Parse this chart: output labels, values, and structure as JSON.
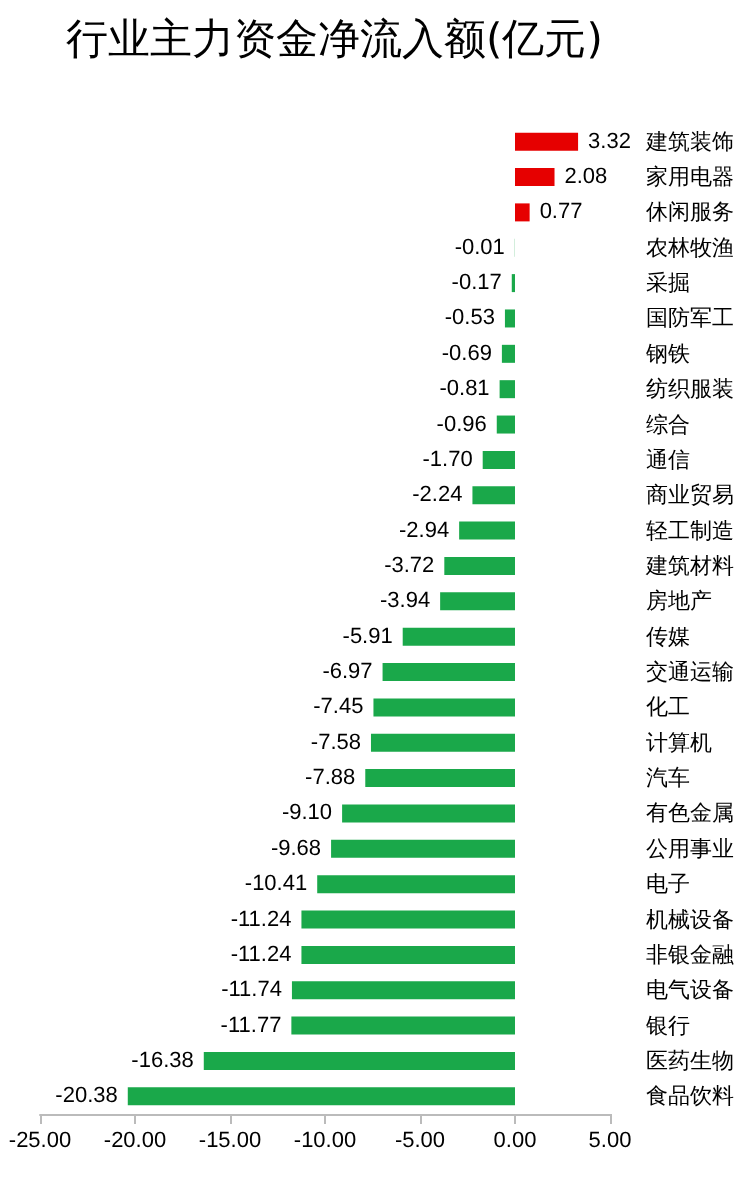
{
  "chart_data": {
    "type": "bar",
    "orientation": "horizontal",
    "title": "行业主力资金净流入额(亿元)",
    "categories": [
      "建筑装饰",
      "家用电器",
      "休闲服务",
      "农林牧渔",
      "采掘",
      "国防军工",
      "钢铁",
      "纺织服装",
      "综合",
      "通信",
      "商业贸易",
      "轻工制造",
      "建筑材料",
      "房地产",
      "传媒",
      "交通运输",
      "化工",
      "计算机",
      "汽车",
      "有色金属",
      "公用事业",
      "电子",
      "机械设备",
      "非银金融",
      "电气设备",
      "银行",
      "医药生物",
      "食品饮料"
    ],
    "values": [
      3.32,
      2.08,
      0.77,
      -0.01,
      -0.17,
      -0.53,
      -0.69,
      -0.81,
      -0.96,
      -1.7,
      -2.24,
      -2.94,
      -3.72,
      -3.94,
      -5.91,
      -6.97,
      -7.45,
      -7.58,
      -7.88,
      -9.1,
      -9.68,
      -10.41,
      -11.24,
      -11.24,
      -11.74,
      -11.77,
      -16.38,
      -20.38
    ],
    "value_labels": [
      "3.32",
      "2.08",
      "0.77",
      "-0.01",
      "-0.17",
      "-0.53",
      "-0.69",
      "-0.81",
      "-0.96",
      "-1.70",
      "-2.24",
      "-2.94",
      "-3.72",
      "-3.94",
      "-5.91",
      "-6.97",
      "-7.45",
      "-7.58",
      "-7.88",
      "-9.10",
      "-9.68",
      "-10.41",
      "-11.24",
      "-11.24",
      "-11.74",
      "-11.77",
      "-16.38",
      "-20.38"
    ],
    "colors": [
      "#e60000",
      "#e60000",
      "#e60000",
      "#1aa84a",
      "#1aa84a",
      "#1aa84a",
      "#1aa84a",
      "#1aa84a",
      "#1aa84a",
      "#1aa84a",
      "#1aa84a",
      "#1aa84a",
      "#1aa84a",
      "#1aa84a",
      "#1aa84a",
      "#1aa84a",
      "#1aa84a",
      "#1aa84a",
      "#1aa84a",
      "#1aa84a",
      "#1aa84a",
      "#1aa84a",
      "#1aa84a",
      "#1aa84a",
      "#1aa84a",
      "#1aa84a",
      "#1aa84a",
      "#1aa84a"
    ],
    "xlim": [
      -25,
      5
    ],
    "xticks": [
      {
        "value": -25,
        "label": "-25.00"
      },
      {
        "value": -20,
        "label": "-20.00"
      },
      {
        "value": -15,
        "label": "-15.00"
      },
      {
        "value": -10,
        "label": "-10.00"
      },
      {
        "value": -5,
        "label": "-5.00"
      },
      {
        "value": 0,
        "label": "0.00"
      },
      {
        "value": 5,
        "label": "5.00"
      }
    ]
  }
}
